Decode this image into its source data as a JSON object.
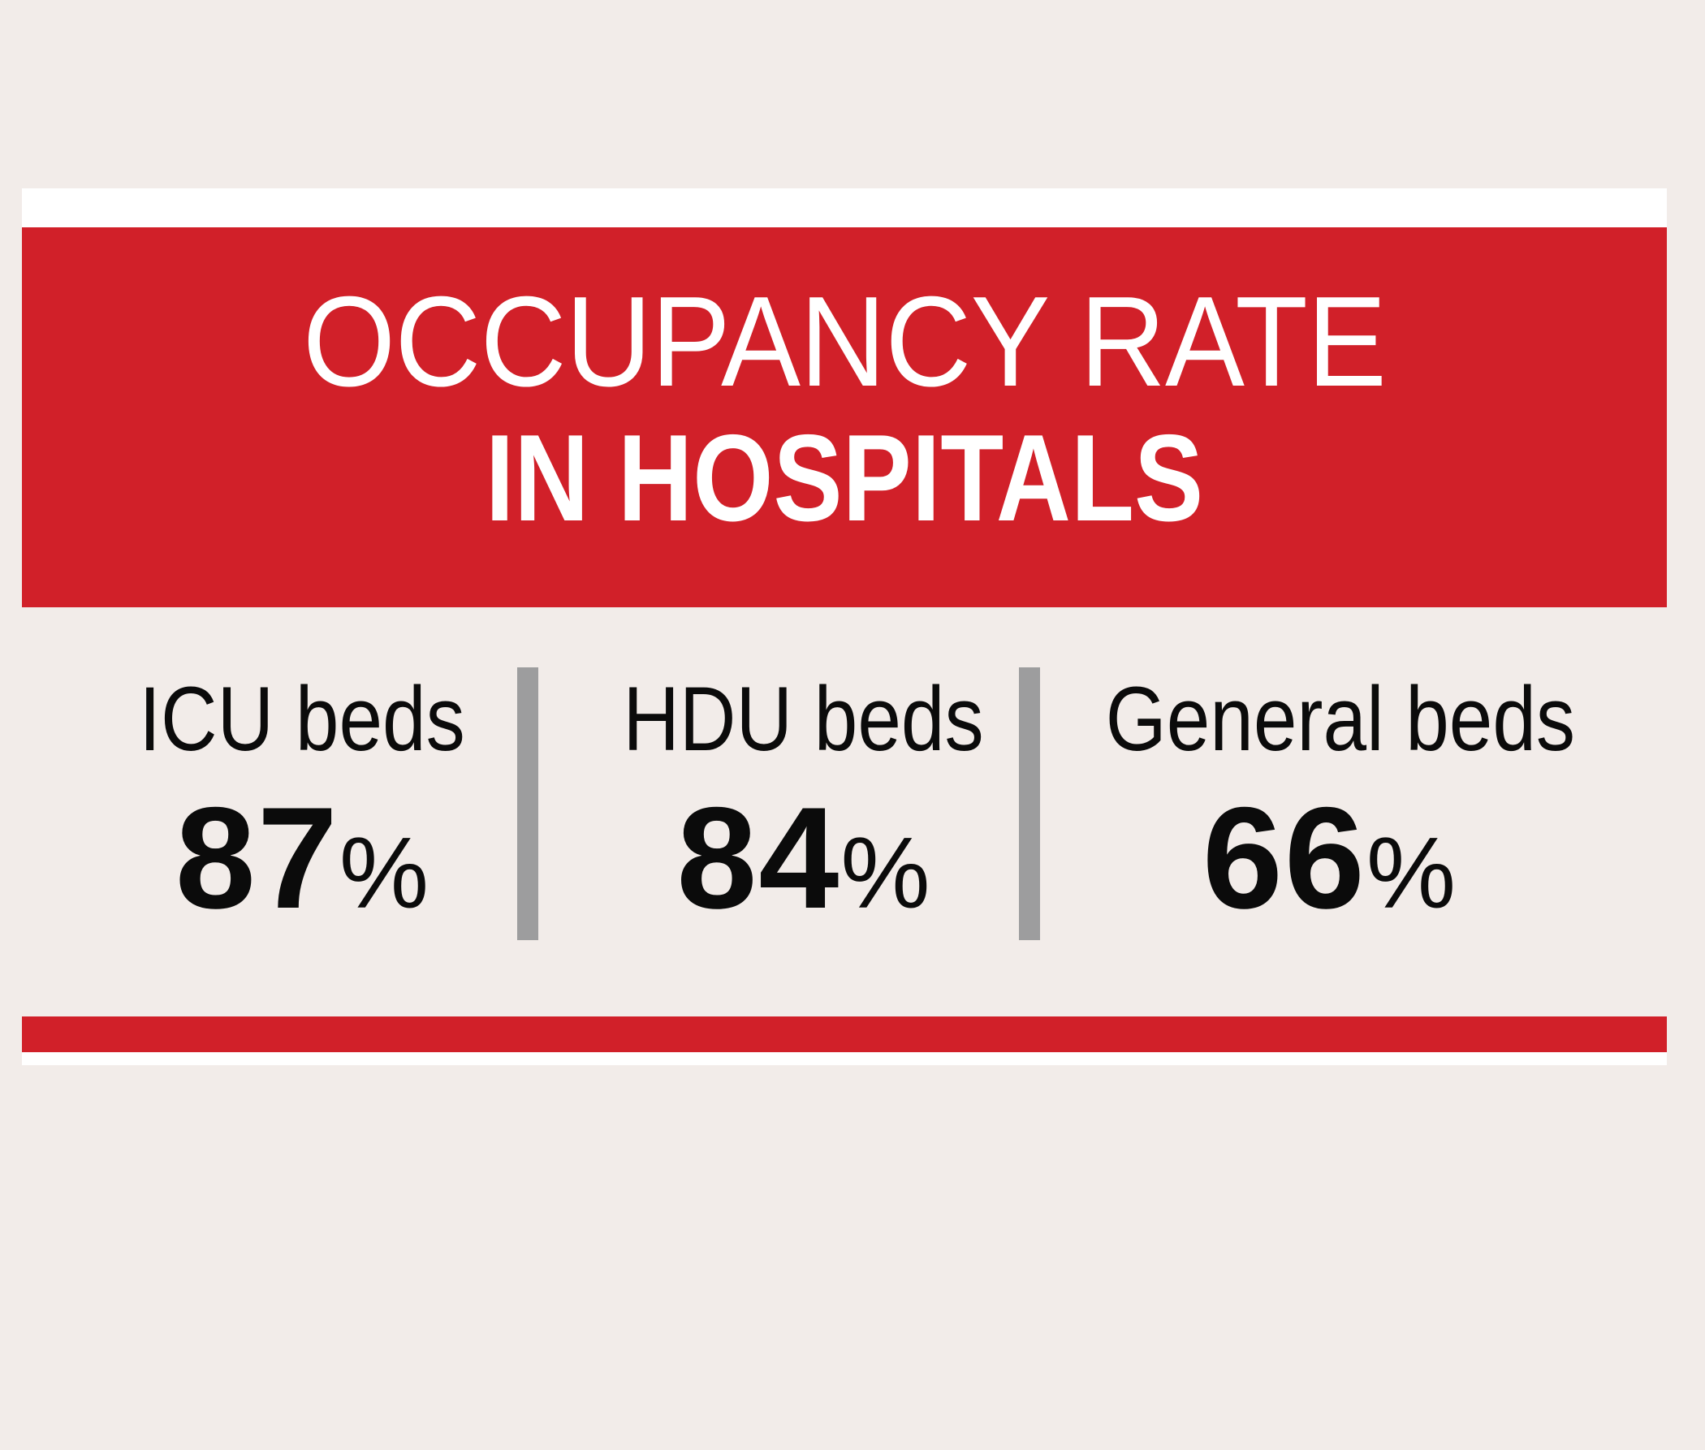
{
  "header": {
    "title_line_1": "OCCUPANCY RATE",
    "title_line_2": "IN HOSPITALS"
  },
  "stats": [
    {
      "label": "ICU beds",
      "value": "87",
      "unit": "%"
    },
    {
      "label": "HDU beds",
      "value": "84",
      "unit": "%"
    },
    {
      "label": "General beds",
      "value": "66",
      "unit": "%"
    }
  ],
  "colors": {
    "background": "#f2ece9",
    "accent_red": "#d12029",
    "divider_gray": "#9d9d9e",
    "text_dark": "#0b0b0b",
    "text_light": "#ffffff"
  }
}
